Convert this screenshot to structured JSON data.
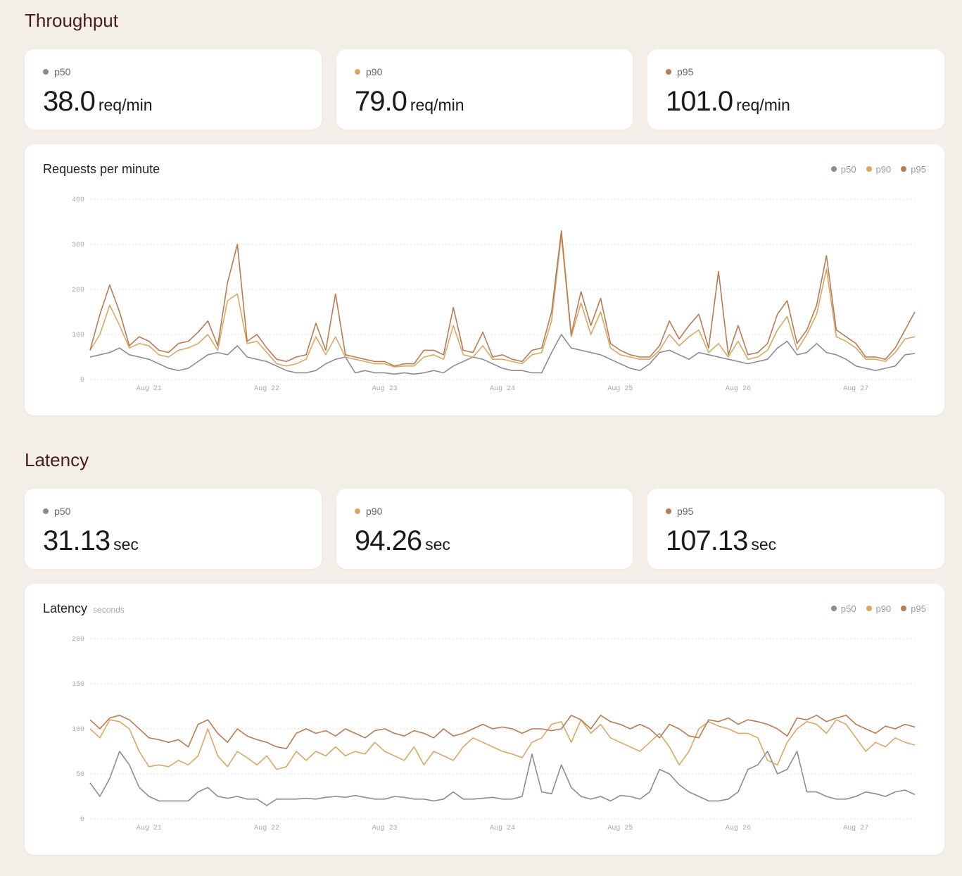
{
  "sections": [
    {
      "title": "Throughput",
      "cards": [
        {
          "name": "p50",
          "value": "38.0",
          "unit": "req/min"
        },
        {
          "name": "p90",
          "value": "79.0",
          "unit": "req/min"
        },
        {
          "name": "p95",
          "value": "101.0",
          "unit": "req/min"
        }
      ]
    },
    {
      "title": "Latency",
      "cards": [
        {
          "name": "p50",
          "value": "31.13",
          "unit": "sec"
        },
        {
          "name": "p90",
          "value": "94.26",
          "unit": "sec"
        },
        {
          "name": "p95",
          "value": "107.13",
          "unit": "sec"
        }
      ]
    }
  ],
  "chart_data": [
    {
      "type": "line",
      "title": "Requests per minute",
      "categories": [
        null,
        null,
        null,
        null,
        null,
        null,
        "Aug 21",
        null,
        null,
        null,
        null,
        null,
        null,
        null,
        null,
        null,
        null,
        null,
        "Aug 22",
        null,
        null,
        null,
        null,
        null,
        null,
        null,
        null,
        null,
        null,
        null,
        "Aug 23",
        null,
        null,
        null,
        null,
        null,
        null,
        null,
        null,
        null,
        null,
        null,
        "Aug 24",
        null,
        null,
        null,
        null,
        null,
        null,
        null,
        null,
        null,
        null,
        null,
        "Aug 25",
        null,
        null,
        null,
        null,
        null,
        null,
        null,
        null,
        null,
        null,
        null,
        "Aug 26",
        null,
        null,
        null,
        null,
        null,
        null,
        null,
        null,
        null,
        null,
        null,
        "Aug 27",
        null,
        null,
        null,
        null,
        null,
        null
      ],
      "ylim": [
        0,
        400
      ],
      "yticks": [
        0,
        100,
        200,
        300,
        400
      ],
      "grid": true,
      "series": [
        {
          "name": "p50",
          "color": "#8e8a9c",
          "values": [
            50,
            55,
            60,
            70,
            55,
            50,
            45,
            35,
            25,
            20,
            25,
            40,
            55,
            60,
            55,
            75,
            50,
            45,
            40,
            30,
            20,
            15,
            15,
            20,
            35,
            45,
            50,
            15,
            20,
            15,
            15,
            12,
            15,
            12,
            15,
            20,
            15,
            30,
            40,
            50,
            45,
            35,
            25,
            20,
            20,
            15,
            15,
            60,
            100,
            70,
            65,
            60,
            55,
            45,
            35,
            25,
            20,
            35,
            60,
            65,
            55,
            45,
            60,
            55,
            50,
            45,
            40,
            35,
            40,
            45,
            70,
            85,
            55,
            60,
            80,
            60,
            55,
            45,
            30,
            25,
            20,
            25,
            30,
            55,
            58
          ]
        },
        {
          "name": "p90",
          "color": "#d8a866",
          "values": [
            65,
            100,
            165,
            120,
            70,
            80,
            75,
            55,
            50,
            65,
            70,
            80,
            100,
            65,
            175,
            190,
            80,
            85,
            60,
            35,
            30,
            35,
            45,
            95,
            55,
            95,
            50,
            45,
            40,
            35,
            35,
            28,
            30,
            30,
            50,
            55,
            45,
            120,
            55,
            50,
            75,
            45,
            45,
            40,
            35,
            55,
            60,
            130,
            320,
            95,
            170,
            100,
            150,
            70,
            55,
            50,
            45,
            45,
            65,
            100,
            75,
            95,
            110,
            60,
            80,
            50,
            85,
            45,
            50,
            65,
            110,
            140,
            65,
            100,
            145,
            245,
            95,
            85,
            70,
            45,
            45,
            40,
            60,
            90,
            95
          ]
        },
        {
          "name": "p95",
          "color": "#b87b54",
          "values": [
            65,
            145,
            210,
            150,
            75,
            95,
            85,
            65,
            60,
            80,
            85,
            105,
            130,
            75,
            215,
            300,
            85,
            100,
            70,
            45,
            40,
            50,
            55,
            125,
            65,
            190,
            55,
            50,
            45,
            40,
            40,
            30,
            35,
            35,
            65,
            65,
            55,
            160,
            65,
            60,
            105,
            50,
            55,
            45,
            40,
            65,
            70,
            150,
            330,
            100,
            195,
            120,
            180,
            80,
            65,
            55,
            50,
            50,
            75,
            130,
            90,
            120,
            145,
            70,
            240,
            55,
            120,
            55,
            60,
            80,
            145,
            175,
            80,
            110,
            165,
            275,
            110,
            95,
            80,
            50,
            50,
            45,
            70,
            110,
            150
          ]
        }
      ]
    },
    {
      "type": "line",
      "title": "Latency",
      "subtitle": "seconds",
      "categories": [
        null,
        null,
        null,
        null,
        null,
        null,
        "Aug 21",
        null,
        null,
        null,
        null,
        null,
        null,
        null,
        null,
        null,
        null,
        null,
        "Aug 22",
        null,
        null,
        null,
        null,
        null,
        null,
        null,
        null,
        null,
        null,
        null,
        "Aug 23",
        null,
        null,
        null,
        null,
        null,
        null,
        null,
        null,
        null,
        null,
        null,
        "Aug 24",
        null,
        null,
        null,
        null,
        null,
        null,
        null,
        null,
        null,
        null,
        null,
        "Aug 25",
        null,
        null,
        null,
        null,
        null,
        null,
        null,
        null,
        null,
        null,
        null,
        "Aug 26",
        null,
        null,
        null,
        null,
        null,
        null,
        null,
        null,
        null,
        null,
        null,
        "Aug 27",
        null,
        null,
        null,
        null,
        null,
        null
      ],
      "ylim": [
        0,
        200
      ],
      "yticks": [
        0,
        50,
        100,
        150,
        200
      ],
      "grid": true,
      "series": [
        {
          "name": "p50",
          "color": "#8e8a9c",
          "values": [
            40,
            25,
            45,
            75,
            60,
            35,
            25,
            20,
            20,
            20,
            20,
            30,
            35,
            25,
            23,
            25,
            22,
            22,
            15,
            22,
            22,
            22,
            23,
            22,
            24,
            25,
            24,
            26,
            24,
            22,
            22,
            25,
            24,
            22,
            22,
            20,
            22,
            30,
            22,
            22,
            23,
            24,
            22,
            22,
            25,
            72,
            30,
            28,
            60,
            35,
            25,
            22,
            25,
            20,
            26,
            25,
            22,
            30,
            55,
            50,
            38,
            30,
            25,
            20,
            20,
            22,
            30,
            55,
            60,
            75,
            50,
            55,
            75,
            30,
            30,
            25,
            22,
            22,
            25,
            30,
            28,
            25,
            30,
            32,
            27
          ]
        },
        {
          "name": "p90",
          "color": "#d8a866",
          "values": [
            100,
            90,
            110,
            108,
            100,
            75,
            58,
            60,
            58,
            65,
            60,
            70,
            100,
            70,
            58,
            75,
            68,
            60,
            70,
            55,
            58,
            75,
            65,
            75,
            70,
            80,
            70,
            75,
            72,
            85,
            75,
            70,
            65,
            80,
            60,
            75,
            70,
            65,
            80,
            90,
            85,
            80,
            75,
            72,
            68,
            85,
            90,
            105,
            108,
            85,
            110,
            95,
            105,
            90,
            85,
            80,
            75,
            85,
            95,
            80,
            60,
            75,
            100,
            108,
            103,
            100,
            95,
            95,
            90,
            65,
            60,
            85,
            100,
            108,
            105,
            95,
            110,
            105,
            90,
            75,
            85,
            80,
            90,
            85,
            82
          ]
        },
        {
          "name": "p95",
          "color": "#b87b54",
          "values": [
            110,
            100,
            112,
            115,
            110,
            100,
            90,
            88,
            85,
            88,
            80,
            105,
            110,
            95,
            85,
            100,
            92,
            88,
            85,
            80,
            78,
            95,
            100,
            95,
            98,
            92,
            100,
            95,
            90,
            98,
            100,
            95,
            92,
            98,
            95,
            90,
            100,
            92,
            95,
            100,
            105,
            100,
            102,
            100,
            95,
            100,
            100,
            98,
            100,
            115,
            110,
            100,
            115,
            108,
            105,
            100,
            105,
            100,
            90,
            105,
            100,
            92,
            90,
            110,
            108,
            112,
            105,
            110,
            108,
            105,
            100,
            92,
            112,
            110,
            115,
            108,
            112,
            115,
            105,
            100,
            95,
            103,
            100,
            105,
            102
          ]
        }
      ]
    }
  ]
}
